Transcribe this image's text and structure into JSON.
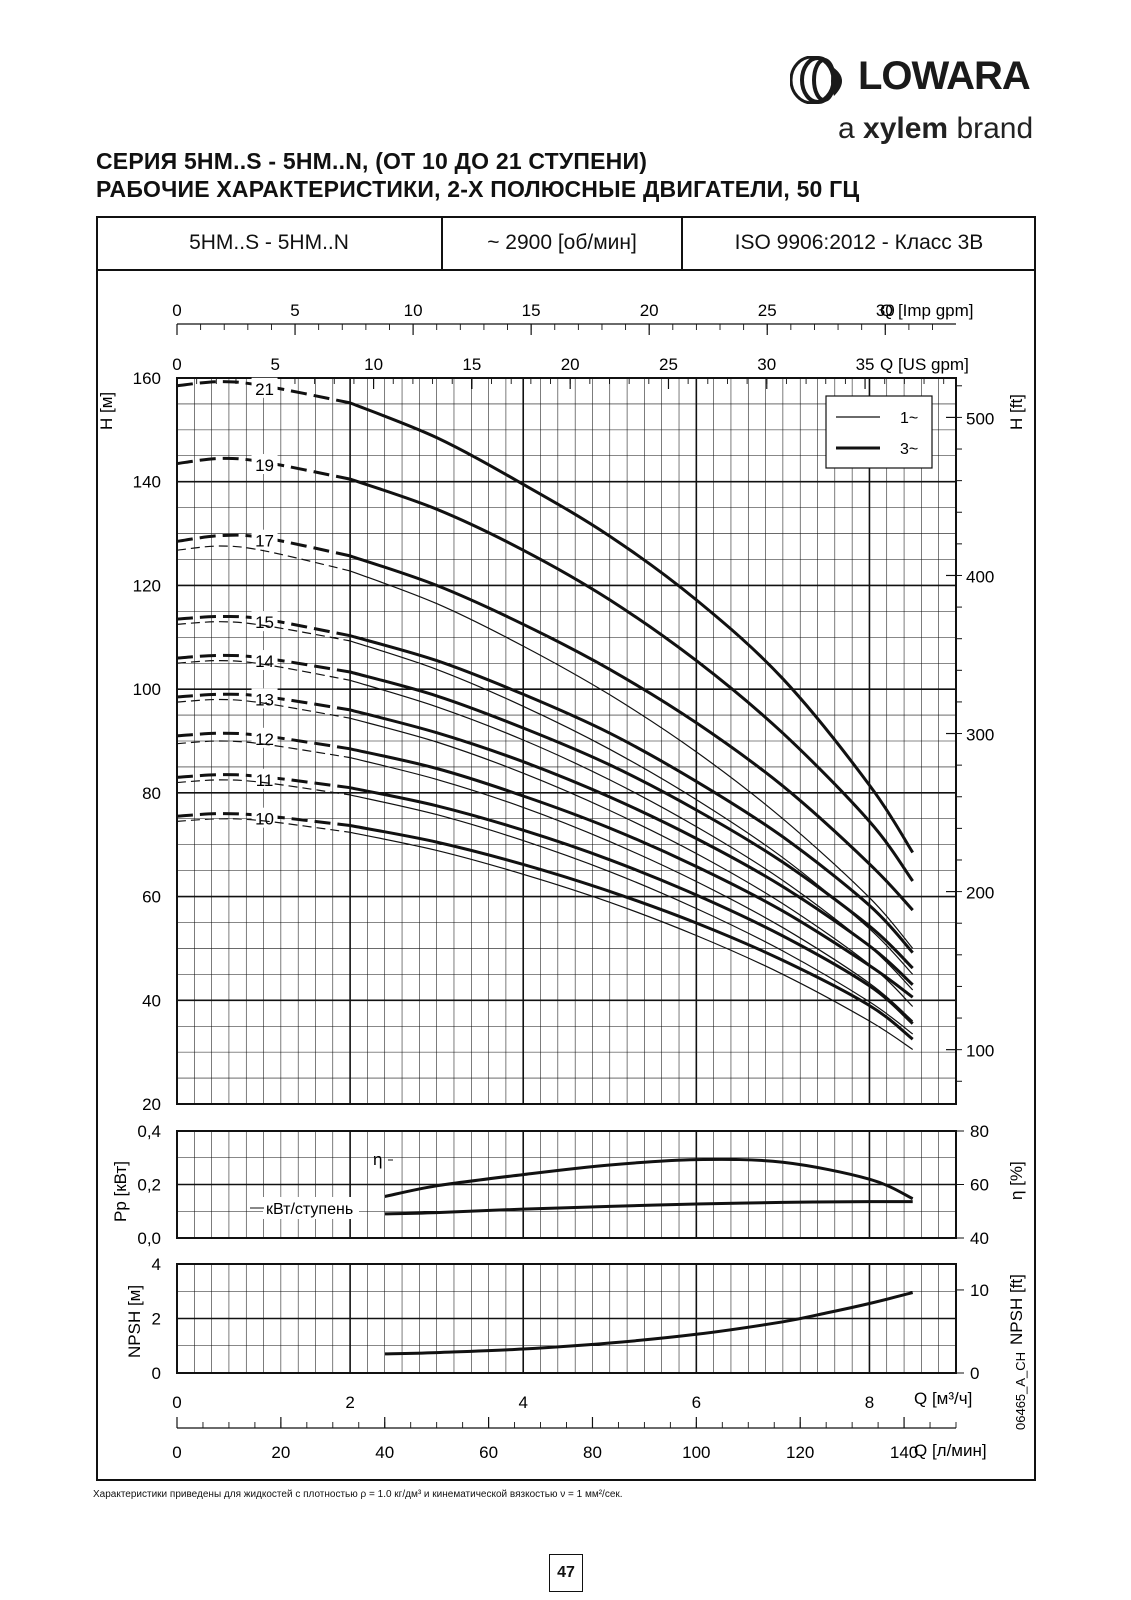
{
  "brand": {
    "logo_text": "LOWARA",
    "tagline_pre": "a ",
    "tagline_bold": "xylem",
    "tagline_post": " brand"
  },
  "title": {
    "line1": "СЕРИЯ 5HM..S - 5HM..N, (ОТ 10 ДО 21 СТУПЕНИ)",
    "line2": "РАБОЧИЕ ХАРАКТЕРИСТИКИ, 2-Х ПОЛЮСНЫЕ ДВИГАТЕЛИ, 50 ГЦ"
  },
  "header": {
    "model": "5HM..S - 5HM..N",
    "speed": "~ 2900 [об/мин]",
    "standard": "ISO 9906:2012 - Класс 3B"
  },
  "footnote": "Характеристики приведены для жидкостей с плотностью ρ = 1.0 кг/дм³ и кинематической вязкостью ν = 1 мм²/сек.",
  "page_number": "47",
  "drawing_code": "06465_A_CH",
  "chart_data": [
    {
      "type": "line",
      "name": "H-Q curves",
      "ylabel": "H [м]",
      "ylabel_right": "H [ft]",
      "ylim": [
        20,
        160
      ],
      "xlim": [
        0,
        9
      ],
      "yticks": [
        20,
        40,
        60,
        80,
        100,
        120,
        140,
        160
      ],
      "yticks_right": [
        100,
        200,
        300,
        400,
        500
      ],
      "legend": {
        "position": "top-right",
        "entries": [
          {
            "label": "1~",
            "style": "thin"
          },
          {
            "label": "3~",
            "style": "thick"
          }
        ]
      },
      "x_axes_top": [
        {
          "label": "Q [Imp gpm]",
          "ticks": [
            0,
            5,
            10,
            15,
            20,
            25,
            30
          ]
        },
        {
          "label": "Q [US gpm]",
          "ticks": [
            0,
            5,
            10,
            15,
            20,
            25,
            30,
            35
          ]
        }
      ],
      "series": [
        {
          "name": "21",
          "phase": "3~",
          "x": [
            0,
            0.5,
            1,
            2,
            3,
            4,
            5,
            6,
            7,
            8,
            8.5
          ],
          "y": [
            158.5,
            159.3,
            158.5,
            155.2,
            148.5,
            139.5,
            129.5,
            117.2,
            102,
            81.5,
            68.5
          ]
        },
        {
          "name": "19",
          "phase": "3~",
          "x": [
            0,
            0.5,
            1,
            2,
            3,
            4,
            5,
            6,
            7,
            8,
            8.5
          ],
          "y": [
            143.5,
            144.5,
            143.8,
            140.5,
            134.7,
            126.8,
            117.2,
            105.5,
            91.5,
            74.5,
            63
          ]
        },
        {
          "name": "17",
          "phase": "3~",
          "x": [
            0,
            0.5,
            1,
            2,
            3,
            4,
            5,
            6,
            7,
            8,
            8.5
          ],
          "y": [
            128.5,
            129.6,
            129.2,
            125.7,
            120,
            112.5,
            103.8,
            93.5,
            81.3,
            66.3,
            57.4
          ]
        },
        {
          "name": "17",
          "phase": "1~",
          "x": [
            0,
            0.5,
            1,
            2,
            3,
            4,
            5,
            6,
            7,
            8,
            8.5
          ],
          "y": [
            126.8,
            127.6,
            126.7,
            122.8,
            116.5,
            108.3,
            98.9,
            87.9,
            75,
            59.8,
            50
          ]
        },
        {
          "name": "15",
          "phase": "3~",
          "x": [
            0,
            0.5,
            1,
            2,
            3,
            4,
            5,
            6,
            7,
            8,
            8.5
          ],
          "y": [
            113.5,
            114,
            113.5,
            110.3,
            105.5,
            99,
            91.5,
            82.2,
            71.5,
            58.3,
            49.2
          ]
        },
        {
          "name": "15",
          "phase": "1~",
          "x": [
            0,
            0.5,
            1,
            2,
            3,
            4,
            5,
            6,
            7,
            8,
            8.5
          ],
          "y": [
            112.5,
            113,
            112.3,
            109.3,
            103.8,
            96.7,
            88.4,
            78.7,
            67.5,
            53.8,
            45
          ]
        },
        {
          "name": "14",
          "phase": "3~",
          "x": [
            0,
            0.5,
            1,
            2,
            3,
            4,
            5,
            6,
            7,
            8,
            8.5
          ],
          "y": [
            106,
            106.5,
            106,
            103.3,
            98.7,
            92.5,
            85.4,
            76.7,
            66.6,
            54.3,
            46.2
          ]
        },
        {
          "name": "14",
          "phase": "1~",
          "x": [
            0,
            0.5,
            1,
            2,
            3,
            4,
            5,
            6,
            7,
            8,
            8.5
          ],
          "y": [
            105,
            105.5,
            104.8,
            101.7,
            96.6,
            90.2,
            82.5,
            73.5,
            63.1,
            50.4,
            42
          ]
        },
        {
          "name": "13",
          "phase": "3~",
          "x": [
            0,
            0.5,
            1,
            2,
            3,
            4,
            5,
            6,
            7,
            8,
            8.5
          ],
          "y": [
            98.5,
            99,
            98.6,
            96,
            91.6,
            86,
            79.2,
            71.2,
            61.9,
            50.5,
            43
          ]
        },
        {
          "name": "13",
          "phase": "1~",
          "x": [
            0,
            0.5,
            1,
            2,
            3,
            4,
            5,
            6,
            7,
            8,
            8.5
          ],
          "y": [
            97.5,
            98,
            97.3,
            94.4,
            89.8,
            83.8,
            76.6,
            68.3,
            58.6,
            46.9,
            38.8
          ]
        },
        {
          "name": "12",
          "phase": "3~",
          "x": [
            0,
            0.5,
            1,
            2,
            3,
            4,
            5,
            6,
            7,
            8,
            8.5
          ],
          "y": [
            91,
            91.5,
            91,
            88.5,
            84.7,
            79.4,
            73.2,
            65.8,
            57.2,
            46.7,
            40.6
          ]
        },
        {
          "name": "12",
          "phase": "1~",
          "x": [
            0,
            0.5,
            1,
            2,
            3,
            4,
            5,
            6,
            7,
            8,
            8.5
          ],
          "y": [
            89.5,
            90,
            89.4,
            86.8,
            82.6,
            77.2,
            70.6,
            62.9,
            54,
            43.3,
            36
          ]
        },
        {
          "name": "11",
          "phase": "3~",
          "x": [
            0,
            0.5,
            1,
            2,
            3,
            4,
            5,
            6,
            7,
            8,
            8.5
          ],
          "y": [
            83,
            83.5,
            83.1,
            81,
            77.5,
            72.8,
            67.1,
            60.3,
            52.4,
            42.8,
            35.5
          ]
        },
        {
          "name": "11",
          "phase": "1~",
          "x": [
            0,
            0.5,
            1,
            2,
            3,
            4,
            5,
            6,
            7,
            8,
            8.5
          ],
          "y": [
            82,
            82.5,
            82,
            79.6,
            75.8,
            70.8,
            64.8,
            57.7,
            49.5,
            39.7,
            33.5
          ]
        },
        {
          "name": "10",
          "phase": "3~",
          "x": [
            0,
            0.5,
            1,
            2,
            3,
            4,
            5,
            6,
            7,
            8,
            8.5
          ],
          "y": [
            75.5,
            76,
            75.6,
            73.7,
            70.5,
            66.2,
            61,
            54.9,
            47.7,
            39,
            32.5
          ]
        },
        {
          "name": "10",
          "phase": "1~",
          "x": [
            0,
            0.5,
            1,
            2,
            3,
            4,
            5,
            6,
            7,
            8,
            8.5
          ],
          "y": [
            74.5,
            75,
            74.6,
            72.4,
            68.9,
            64.3,
            58.9,
            52.5,
            45,
            36,
            30.5
          ]
        }
      ]
    },
    {
      "type": "line",
      "name": "Power and efficiency",
      "ylabel": "Pp [кВт]",
      "ylabel_right": "η [%]",
      "ylim": [
        0,
        0.4
      ],
      "ylim_right": [
        40,
        80
      ],
      "yticks": [
        "0,0",
        "0,2",
        "0,4"
      ],
      "yticks_right": [
        40,
        60,
        80
      ],
      "series": [
        {
          "name": "η",
          "x": [
            2.4,
            3,
            4,
            5,
            6,
            7,
            8,
            8.5
          ],
          "y_right": [
            55.5,
            59.5,
            63.7,
            67.3,
            69.3,
            68.3,
            62,
            54.7
          ]
        },
        {
          "name": "кВт/ступень",
          "x": [
            2.4,
            3,
            4,
            5,
            6,
            7,
            8,
            8.5
          ],
          "y": [
            0.09,
            0.095,
            0.108,
            0.118,
            0.127,
            0.133,
            0.136,
            0.136
          ]
        }
      ]
    },
    {
      "type": "line",
      "name": "NPSH",
      "ylabel": "NPSH [м]",
      "ylabel_right": "NPSH [ft]",
      "ylim": [
        0,
        4
      ],
      "yticks": [
        0,
        2,
        4
      ],
      "yticks_right": [
        0,
        10
      ],
      "x_axes_bottom": [
        {
          "label": "Q [м³/ч]",
          "ticks": [
            0,
            2,
            4,
            6,
            8
          ]
        },
        {
          "label": "Q [л/мин]",
          "ticks": [
            0,
            20,
            40,
            60,
            80,
            100,
            120,
            140
          ]
        }
      ],
      "series": [
        {
          "name": "NPSH",
          "x": [
            2.4,
            3,
            4,
            5,
            6,
            7,
            7.5,
            8,
            8.5
          ],
          "y": [
            0.7,
            0.75,
            0.88,
            1.1,
            1.42,
            1.88,
            2.2,
            2.55,
            2.95
          ]
        }
      ]
    }
  ]
}
